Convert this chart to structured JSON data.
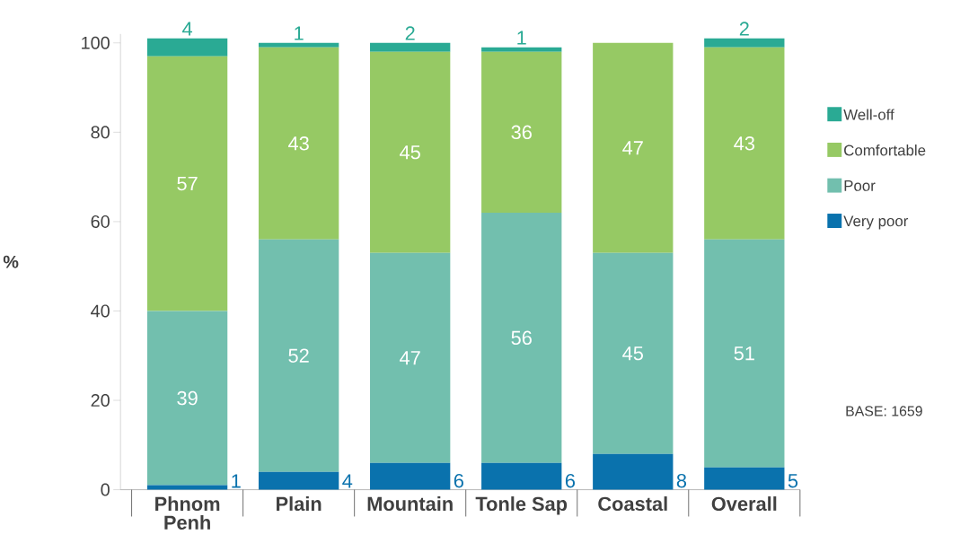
{
  "chart_data": {
    "type": "bar",
    "stacked": true,
    "ylabel": "%",
    "categories": [
      "Phnom Penh",
      "Plain",
      "Mountain",
      "Tonle Sap",
      "Coastal",
      "Overall"
    ],
    "series": [
      {
        "name": "Very poor",
        "color": "#0a72ad",
        "values": [
          1,
          4,
          6,
          6,
          8,
          5
        ],
        "value_labels": [
          "1",
          "4",
          "6",
          "6",
          "8",
          "5"
        ]
      },
      {
        "name": "Poor",
        "color": "#72bfae",
        "values": [
          39,
          52,
          47,
          56,
          45,
          51
        ],
        "value_labels": [
          "39",
          "52",
          "47",
          "56",
          "45",
          "51"
        ]
      },
      {
        "name": "Comfortable",
        "color": "#96c964",
        "values": [
          57,
          43,
          45,
          36,
          47,
          43
        ],
        "value_labels": [
          "57",
          "43",
          "45",
          "36",
          "47",
          "43"
        ]
      },
      {
        "name": "Well-off",
        "color": "#2aaa94",
        "values": [
          4,
          1,
          2,
          1,
          0,
          2
        ],
        "value_labels": [
          "4",
          "1",
          "2",
          "1",
          null,
          "2"
        ]
      }
    ],
    "ylim": [
      0,
      102
    ],
    "yticks": [
      0,
      20,
      40,
      60,
      80,
      100
    ],
    "grid": false,
    "legend": "right",
    "annotations": [
      "BASE: 1659"
    ]
  }
}
